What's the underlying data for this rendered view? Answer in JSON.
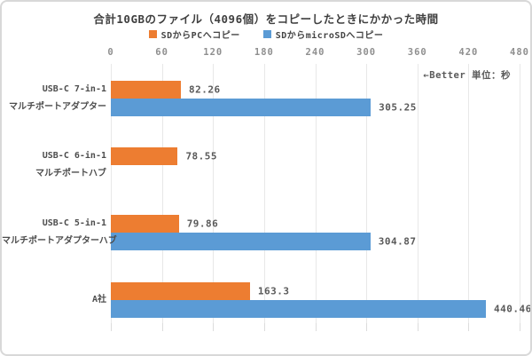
{
  "page": {
    "background": "#ffffff",
    "border_color": "#d8d8d8"
  },
  "chart_data": {
    "type": "bar",
    "orientation": "horizontal",
    "title": "合計10GBのファイル（4096個）をコピーしたときにかかった時間",
    "annotation": "←Better 単位：秒",
    "legend_position": "top",
    "grid": true,
    "x_axis": {
      "position": "top",
      "min": 0,
      "max": 480,
      "ticks": [
        0,
        60,
        120,
        180,
        240,
        300,
        360,
        420,
        480
      ]
    },
    "categories": [
      {
        "lines": [
          "USB-C 7-in-1",
          "マルチポートアダプター"
        ]
      },
      {
        "lines": [
          "USB-C 6-in-1",
          "マルチポートハブ"
        ]
      },
      {
        "lines": [
          "USB-C 5-in-1",
          "マルチポートアダプターハブ"
        ]
      },
      {
        "lines": [
          "A社"
        ]
      }
    ],
    "series": [
      {
        "name": "SDからPCへコピー",
        "color": "#ED7D31",
        "values": [
          82.26,
          78.55,
          79.86,
          163.3
        ]
      },
      {
        "name": "SDからmicroSDへコピー",
        "color": "#5B9BD5",
        "values": [
          305.25,
          null,
          304.87,
          440.46
        ]
      }
    ]
  }
}
